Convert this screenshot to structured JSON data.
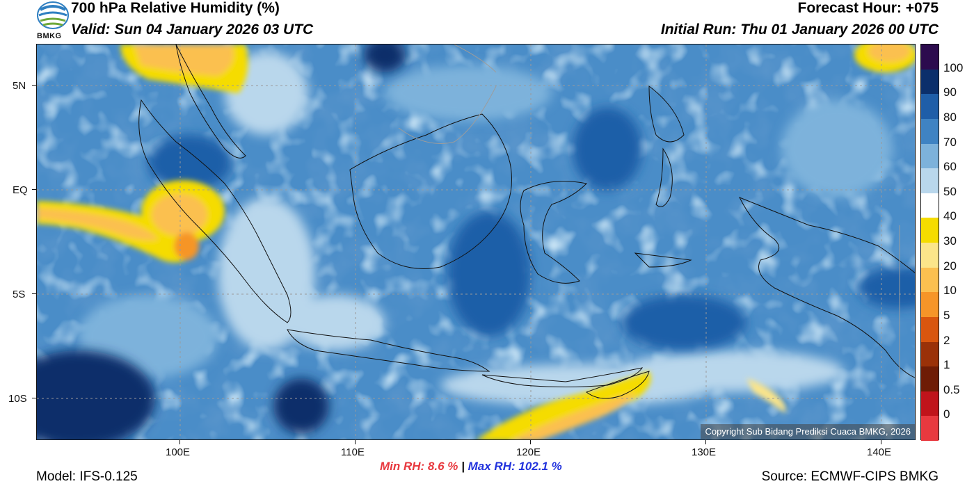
{
  "header": {
    "title": "700 hPa Relative Humidity (%)",
    "valid": "Valid: Sun 04 January 2026 03 UTC",
    "forecast_hour": "Forecast Hour: +075",
    "initial_run": "Initial Run: Thu 01 January 2026 00 UTC",
    "logo_text": "BMKG"
  },
  "map": {
    "lat_labels": [
      "5N",
      "EQ",
      "5S",
      "10S"
    ],
    "lon_labels": [
      "100E",
      "110E",
      "120E",
      "130E",
      "140E"
    ],
    "copyright": "Copyright Sub Bidang Prediksi Cuaca BMKG, 2026"
  },
  "colorbar": {
    "labels": [
      "100",
      "90",
      "80",
      "70",
      "60",
      "50",
      "40",
      "30",
      "20",
      "10",
      "5",
      "2",
      "1",
      "0.5",
      "0"
    ],
    "colors": [
      "#2c0b4e",
      "#0b2f6b",
      "#1f5ea8",
      "#3f83c3",
      "#7db2db",
      "#b9d7ec",
      "#ffffff",
      "#f5dc00",
      "#fbe58a",
      "#fbc050",
      "#f69528",
      "#d9560e",
      "#9a3108",
      "#6e1c05",
      "#c0141b",
      "#e8393f"
    ]
  },
  "footer": {
    "min_rh": "Min RH:   8.6 %",
    "separator": "|",
    "max_rh": "Max RH: 102.1 %",
    "model": "Model: IFS-0.125",
    "source": "Source: ECMWF-CIPS BMKG"
  }
}
